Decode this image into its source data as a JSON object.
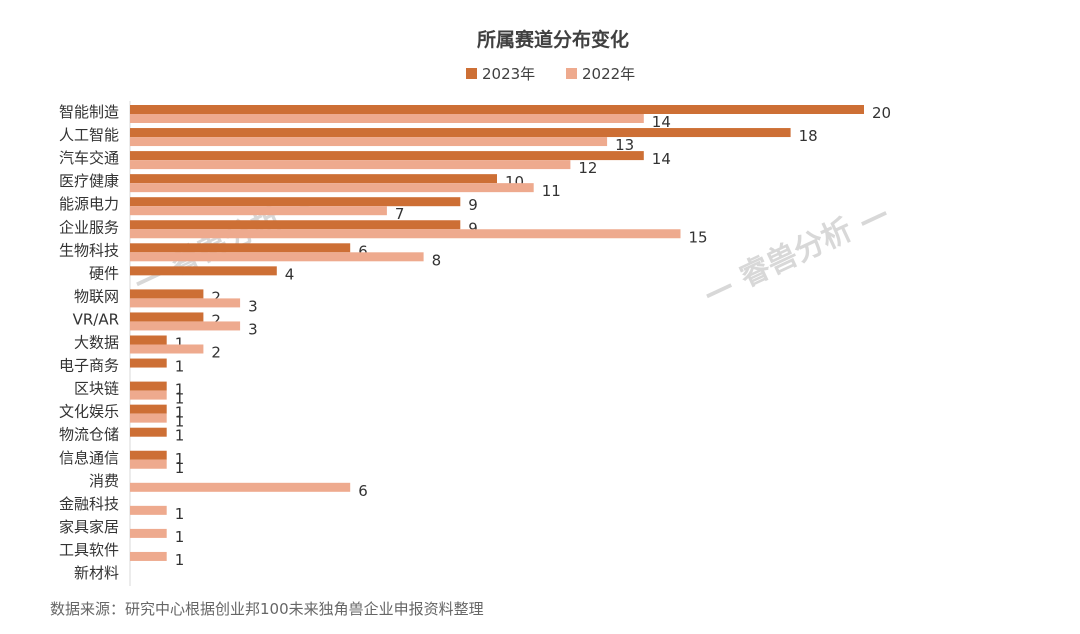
{
  "chart_data": {
    "type": "bar",
    "orientation": "horizontal",
    "title": "所属赛道分布变化",
    "categories": [
      "智能制造",
      "人工智能",
      "汽车交通",
      "医疗健康",
      "能源电力",
      "企业服务",
      "生物科技",
      "硬件",
      "物联网",
      "VR/AR",
      "大数据",
      "电子商务",
      "区块链",
      "文化娱乐",
      "物流仓储",
      "信息通信",
      "消费",
      "金融科技",
      "家具家居",
      "工具软件",
      "新材料"
    ],
    "series": [
      {
        "name": "2023年",
        "color": "#cd6f35",
        "values": [
          20,
          18,
          14,
          10,
          9,
          9,
          6,
          4,
          2,
          2,
          1,
          1,
          1,
          1,
          1,
          1,
          null,
          null,
          null,
          null,
          null
        ]
      },
      {
        "name": "2022年",
        "color": "#eeaa8e",
        "values": [
          14,
          13,
          12,
          11,
          7,
          15,
          8,
          null,
          3,
          3,
          2,
          null,
          1,
          1,
          null,
          1,
          6,
          1,
          1,
          1,
          null
        ]
      }
    ],
    "xlim": [
      0,
      20
    ],
    "legend_position": "top-center",
    "grid": false
  },
  "source_note": "数据来源：研究中心根据创业邦100未来独角兽企业申报资料整理",
  "watermark": "— 睿兽分析 —"
}
